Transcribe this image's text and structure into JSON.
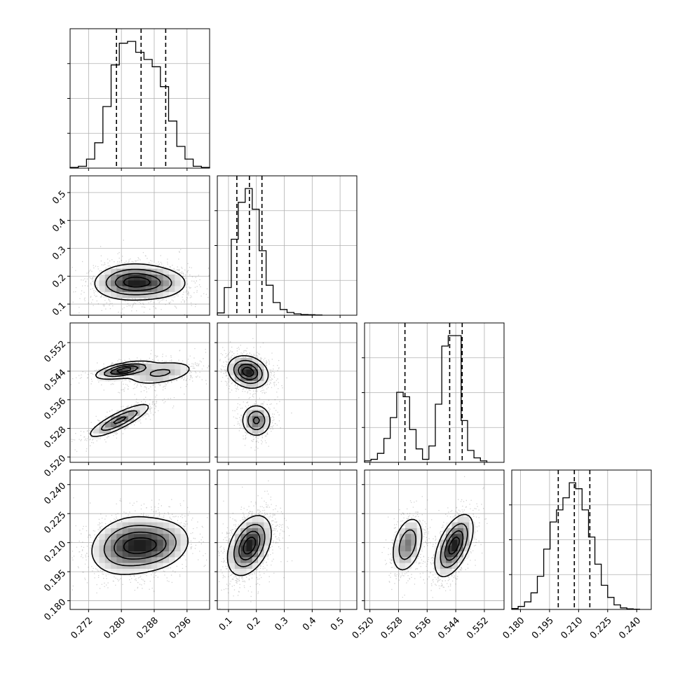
{
  "chart_data": {
    "type": "corner",
    "parameters": [
      {
        "ticks": [
          0.272,
          0.28,
          0.288,
          0.296
        ],
        "tick_labels": [
          "0.272",
          "0.280",
          "0.288",
          "0.296"
        ],
        "range": [
          0.2675,
          0.3015
        ],
        "quantiles": [
          0.2788,
          0.2848,
          0.2908
        ],
        "hist_bins": [
          0.2675,
          0.2695,
          0.2715,
          0.2735,
          0.2755,
          0.2775,
          0.2795,
          0.2815,
          0.2835,
          0.2855,
          0.2875,
          0.2895,
          0.2915,
          0.2935,
          0.2955,
          0.2975,
          0.2995,
          0.3015
        ],
        "hist_counts": [
          2,
          5,
          25,
          70,
          170,
          285,
          345,
          350,
          320,
          300,
          280,
          225,
          130,
          60,
          25,
          5,
          2
        ]
      },
      {
        "ticks": [
          0.1,
          0.2,
          0.3,
          0.4,
          0.5
        ],
        "tick_labels": [
          "0.1",
          "0.2",
          "0.3",
          "0.4",
          "0.5"
        ],
        "range": [
          0.06,
          0.56
        ],
        "quantiles": [
          0.13,
          0.175,
          0.22
        ],
        "hist_bins": [
          0.06,
          0.085,
          0.11,
          0.135,
          0.16,
          0.185,
          0.21,
          0.235,
          0.26,
          0.285,
          0.31,
          0.335,
          0.36,
          0.385,
          0.41,
          0.435
        ],
        "hist_counts": [
          10,
          120,
          330,
          490,
          550,
          460,
          280,
          130,
          55,
          25,
          12,
          6,
          3,
          2,
          1
        ]
      },
      {
        "ticks": [
          0.52,
          0.528,
          0.536,
          0.544,
          0.552
        ],
        "tick_labels": [
          "0.520",
          "0.528",
          "0.536",
          "0.544",
          "0.552"
        ],
        "range": [
          0.5185,
          0.5575
        ],
        "quantiles": [
          0.5298,
          0.5423,
          0.5458
        ],
        "hist_bins": [
          0.5185,
          0.5203,
          0.5221,
          0.5239,
          0.5257,
          0.5275,
          0.5293,
          0.5311,
          0.5329,
          0.5347,
          0.5365,
          0.5383,
          0.5401,
          0.5419,
          0.5437,
          0.5455,
          0.5473,
          0.5491,
          0.5509,
          0.5527
        ],
        "hist_counts": [
          5,
          10,
          30,
          80,
          150,
          235,
          220,
          110,
          45,
          10,
          55,
          195,
          390,
          425,
          425,
          140,
          40,
          15,
          5
        ]
      },
      {
        "ticks": [
          0.18,
          0.195,
          0.21,
          0.225,
          0.24
        ],
        "tick_labels": [
          "0.180",
          "0.195",
          "0.210",
          "0.225",
          "0.240"
        ],
        "range": [
          0.1755,
          0.2475
        ],
        "quantiles": [
          0.1995,
          0.2078,
          0.2158
        ],
        "hist_bins": [
          0.1755,
          0.1788,
          0.1821,
          0.1854,
          0.1887,
          0.192,
          0.1953,
          0.1986,
          0.2019,
          0.2052,
          0.2085,
          0.2118,
          0.2151,
          0.2184,
          0.2217,
          0.225,
          0.2283,
          0.2316,
          0.2349,
          0.2382,
          0.2415
        ],
        "hist_counts": [
          3,
          10,
          25,
          55,
          110,
          200,
          290,
          330,
          370,
          420,
          400,
          330,
          240,
          150,
          80,
          40,
          15,
          5,
          2,
          1
        ]
      }
    ],
    "pairs": [
      {
        "row": 1,
        "col": 0,
        "modes": [
          {
            "cx": 0.2815,
            "cy": 0.18,
            "sx": 0.0042,
            "sy": 0.032,
            "rho": 0.1,
            "w": 0.55
          },
          {
            "cx": 0.2875,
            "cy": 0.175,
            "sx": 0.0045,
            "sy": 0.03,
            "rho": 0.0,
            "w": 0.45
          }
        ]
      },
      {
        "row": 2,
        "col": 0,
        "modes": [
          {
            "cx": 0.2805,
            "cy": 0.5443,
            "sx": 0.0033,
            "sy": 0.0012,
            "rho": 0.6,
            "w": 0.33
          },
          {
            "cx": 0.2895,
            "cy": 0.5435,
            "sx": 0.0045,
            "sy": 0.0018,
            "rho": 0.4,
            "w": 0.32
          },
          {
            "cx": 0.2795,
            "cy": 0.5302,
            "sx": 0.0038,
            "sy": 0.0024,
            "rho": 0.85,
            "w": 0.35
          }
        ]
      },
      {
        "row": 2,
        "col": 1,
        "modes": [
          {
            "cx": 0.17,
            "cy": 0.5438,
            "sx": 0.035,
            "sy": 0.0022,
            "rho": -0.2,
            "w": 0.66
          },
          {
            "cx": 0.2,
            "cy": 0.5302,
            "sx": 0.026,
            "sy": 0.0022,
            "rho": 0.0,
            "w": 0.34
          }
        ]
      },
      {
        "row": 3,
        "col": 0,
        "modes": [
          {
            "cx": 0.2815,
            "cy": 0.2085,
            "sx": 0.0045,
            "sy": 0.0075,
            "rho": 0.2,
            "w": 0.6
          },
          {
            "cx": 0.2885,
            "cy": 0.2085,
            "sx": 0.0042,
            "sy": 0.0065,
            "rho": 0.2,
            "w": 0.4
          }
        ]
      },
      {
        "row": 3,
        "col": 1,
        "modes": [
          {
            "cx": 0.175,
            "cy": 0.2085,
            "sx": 0.038,
            "sy": 0.0075,
            "rho": 0.4,
            "w": 1.0
          }
        ]
      },
      {
        "row": 3,
        "col": 2,
        "modes": [
          {
            "cx": 0.5305,
            "cy": 0.209,
            "sx": 0.0022,
            "sy": 0.0072,
            "rho": 0.35,
            "w": 0.35
          },
          {
            "cx": 0.5435,
            "cy": 0.2085,
            "sx": 0.0026,
            "sy": 0.0078,
            "rho": 0.55,
            "w": 0.65
          }
        ]
      }
    ]
  }
}
